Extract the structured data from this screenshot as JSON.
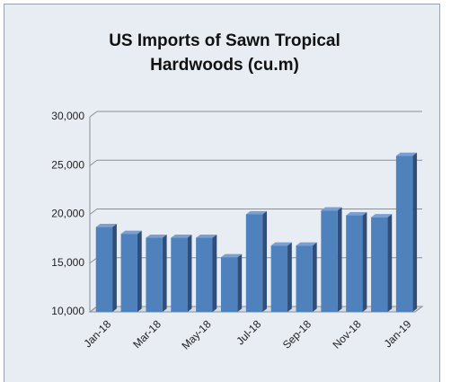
{
  "chart_data": {
    "type": "bar3d",
    "title": "US Imports of Sawn Tropical Hardwoods (cu.m)",
    "categories": [
      "Jan-18",
      null,
      "Mar-18",
      null,
      "May-18",
      null,
      "Jul-18",
      null,
      "Sep-18",
      null,
      "Nov-18",
      null,
      "Jan-19"
    ],
    "values": [
      18700,
      18000,
      17600,
      17600,
      17600,
      15600,
      20000,
      16800,
      16800,
      20400,
      19900,
      19700,
      26000
    ],
    "color": "#4f81bd",
    "ylim": [
      10000,
      30000
    ],
    "yticks": [
      {
        "value": 10000,
        "label": "10,000"
      },
      {
        "value": 15000,
        "label": "15,000"
      },
      {
        "value": 20000,
        "label": "20,000"
      },
      {
        "value": 25000,
        "label": "25,000"
      },
      {
        "value": 30000,
        "label": "30,000"
      }
    ],
    "grid": true
  }
}
